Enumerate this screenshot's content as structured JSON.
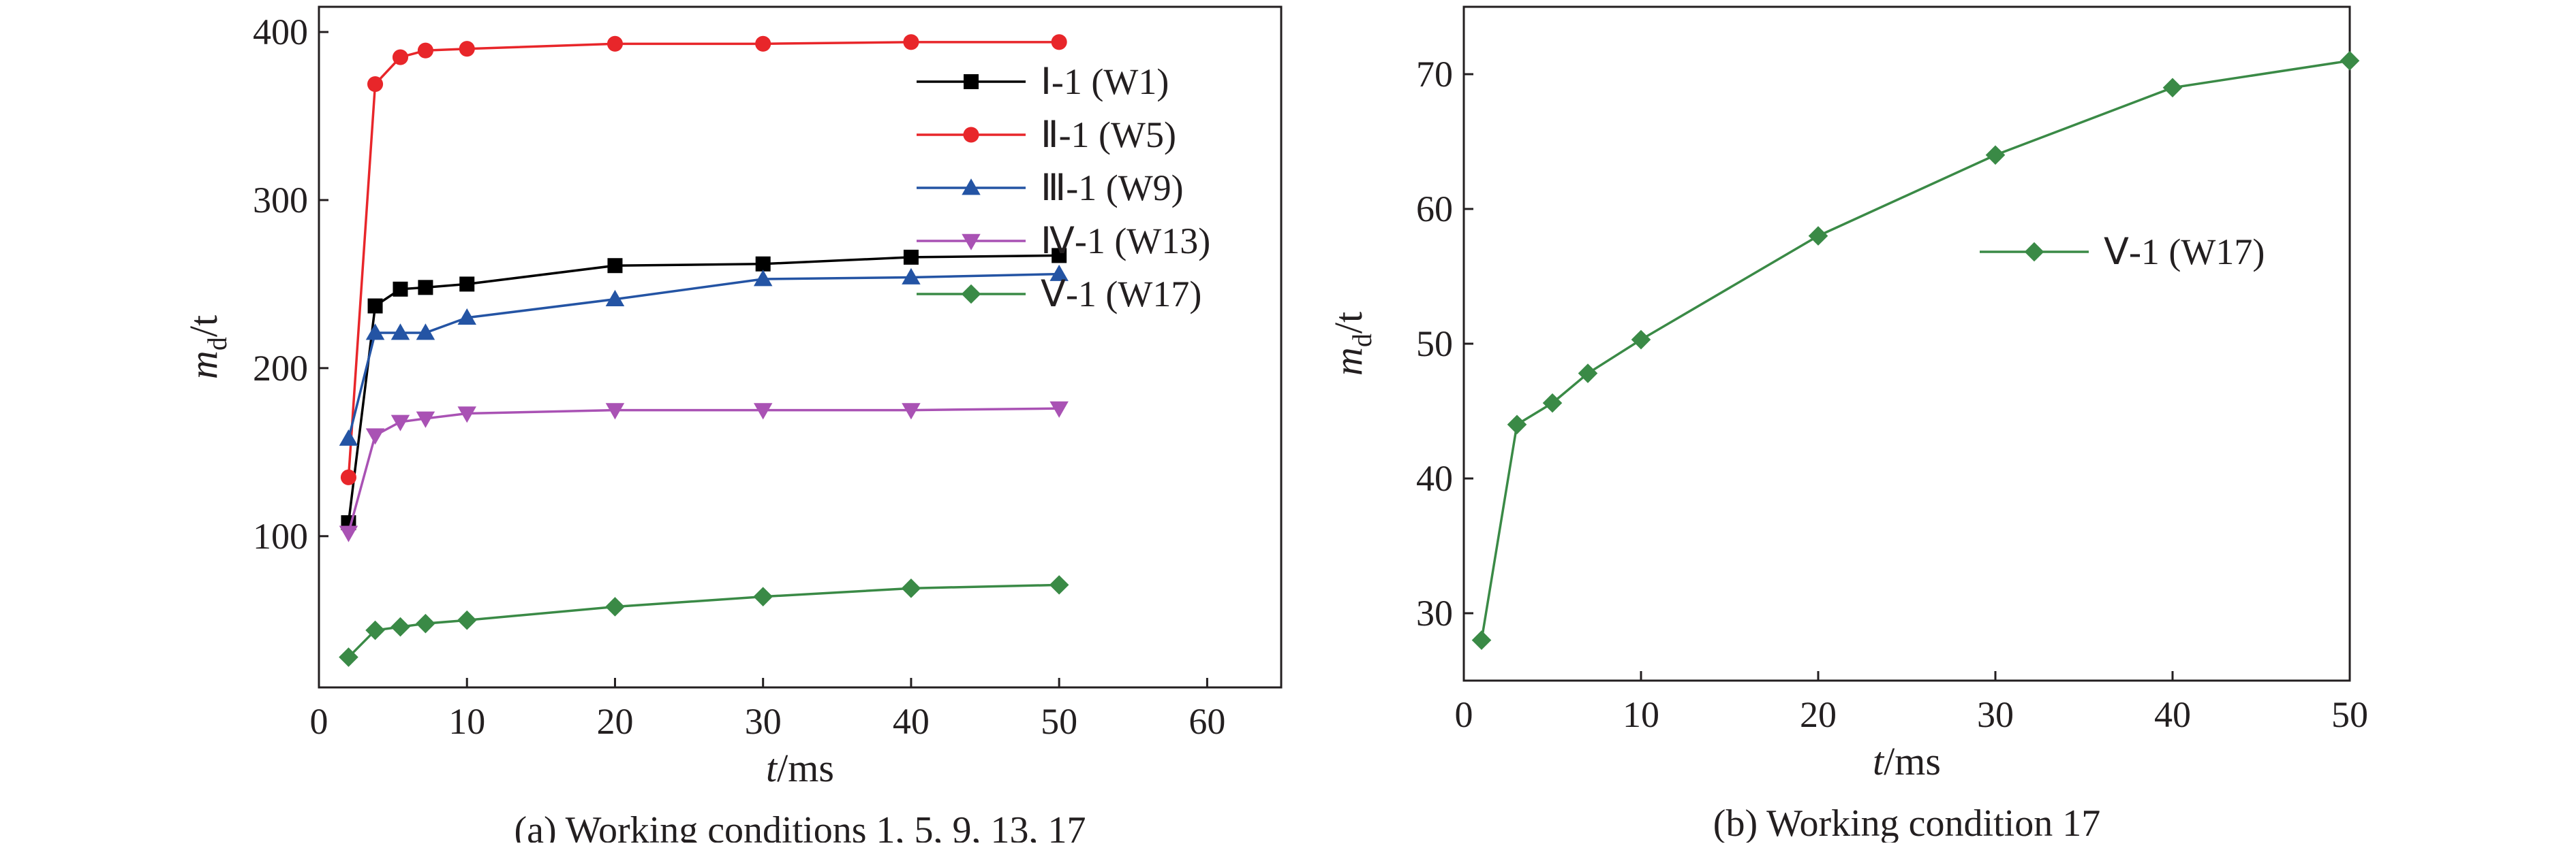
{
  "chart_data": [
    {
      "type": "line",
      "caption": "(a) Working conditions 1, 5, 9, 13, 17",
      "xlabel_var": "t",
      "xlabel_unit": "/ms",
      "ylabel_var": "m",
      "ylabel_sub": "d",
      "ylabel_unit": "/t",
      "xlim": [
        0,
        65
      ],
      "ylim": [
        10,
        415
      ],
      "xticks": [
        0,
        10,
        20,
        30,
        40,
        50,
        60
      ],
      "yticks": [
        100,
        200,
        300,
        400
      ],
      "legend_position": "top-right",
      "series": [
        {
          "name": "Ⅰ-1 (W1)",
          "color": "#000000",
          "marker": "square",
          "x": [
            2,
            3.8,
            5.5,
            7.2,
            10,
            20,
            30,
            40,
            50
          ],
          "y": [
            108,
            237,
            247,
            248,
            250,
            261,
            262,
            266,
            267
          ]
        },
        {
          "name": "Ⅱ-1 (W5)",
          "color": "#e8262a",
          "marker": "circle",
          "x": [
            2,
            3.8,
            5.5,
            7.2,
            10,
            20,
            30,
            40,
            50
          ],
          "y": [
            135,
            369,
            385,
            389,
            390,
            393,
            393,
            394,
            394
          ]
        },
        {
          "name": "Ⅲ-1 (W9)",
          "color": "#2454a4",
          "marker": "triangle-up",
          "x": [
            2,
            3.8,
            5.5,
            7.2,
            10,
            20,
            30,
            40,
            50
          ],
          "y": [
            158,
            221,
            221,
            221,
            230,
            241,
            253,
            254,
            256
          ]
        },
        {
          "name": "Ⅳ-1 (W13)",
          "color": "#a952b4",
          "marker": "triangle-down",
          "x": [
            2,
            3.8,
            5.5,
            7.2,
            10,
            20,
            30,
            40,
            50
          ],
          "y": [
            102,
            160,
            168,
            170,
            173,
            175,
            175,
            175,
            176
          ]
        },
        {
          "name": "Ⅴ-1 (W17)",
          "color": "#3a8a46",
          "marker": "diamond",
          "x": [
            2,
            3.8,
            5.5,
            7.2,
            10,
            20,
            30,
            40,
            50
          ],
          "y": [
            28,
            44,
            46,
            48,
            50,
            58,
            64,
            69,
            71
          ]
        }
      ]
    },
    {
      "type": "line",
      "caption": "(b) Working condition 17",
      "xlabel_var": "t",
      "xlabel_unit": "/ms",
      "ylabel_var": "m",
      "ylabel_sub": "d",
      "ylabel_unit": "/t",
      "xlim": [
        0,
        50
      ],
      "ylim": [
        25,
        75
      ],
      "xticks": [
        0,
        10,
        20,
        30,
        40,
        50
      ],
      "yticks": [
        30,
        40,
        50,
        60,
        70
      ],
      "legend_position": "upper-right",
      "series": [
        {
          "name": "Ⅴ-1 (W17)",
          "color": "#3a8a46",
          "marker": "diamond",
          "x": [
            1,
            3,
            5,
            7,
            10,
            20,
            30,
            40,
            50
          ],
          "y": [
            28,
            44,
            45.6,
            47.8,
            50.3,
            58,
            64,
            69,
            71
          ]
        }
      ]
    }
  ]
}
